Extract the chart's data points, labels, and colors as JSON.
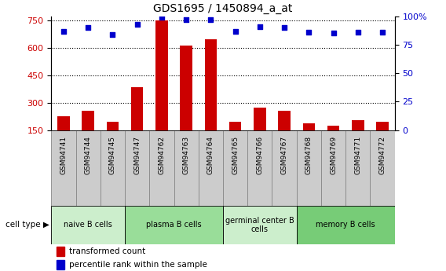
{
  "title": "GDS1695 / 1450894_a_at",
  "samples": [
    "GSM94741",
    "GSM94744",
    "GSM94745",
    "GSM94747",
    "GSM94762",
    "GSM94763",
    "GSM94764",
    "GSM94765",
    "GSM94766",
    "GSM94767",
    "GSM94768",
    "GSM94769",
    "GSM94771",
    "GSM94772"
  ],
  "transformed_count": [
    225,
    255,
    195,
    385,
    750,
    615,
    650,
    195,
    275,
    255,
    185,
    175,
    205,
    195
  ],
  "percentile_rank": [
    87,
    90,
    84,
    93,
    99,
    97,
    97,
    87,
    91,
    90,
    86,
    85,
    86,
    86
  ],
  "cell_groups": [
    {
      "label": "naive B cells",
      "start": 0,
      "end": 3,
      "color": "#cceecc"
    },
    {
      "label": "plasma B cells",
      "start": 3,
      "end": 7,
      "color": "#99dd99"
    },
    {
      "label": "germinal center B\ncells",
      "start": 7,
      "end": 10,
      "color": "#cceecc"
    },
    {
      "label": "memory B cells",
      "start": 10,
      "end": 14,
      "color": "#77cc77"
    }
  ],
  "ylim_left": [
    150,
    775
  ],
  "ylim_right": [
    0,
    100
  ],
  "yticks_left": [
    150,
    300,
    450,
    600,
    750
  ],
  "yticks_right": [
    0,
    25,
    50,
    75,
    100
  ],
  "bar_color": "#cc0000",
  "dot_color": "#0000cc",
  "bar_width": 0.5,
  "background_color": "#ffffff",
  "left_axis_color": "#cc0000",
  "right_axis_color": "#0000cc",
  "tick_bg_color": "#cccccc",
  "tick_border_color": "#888888"
}
